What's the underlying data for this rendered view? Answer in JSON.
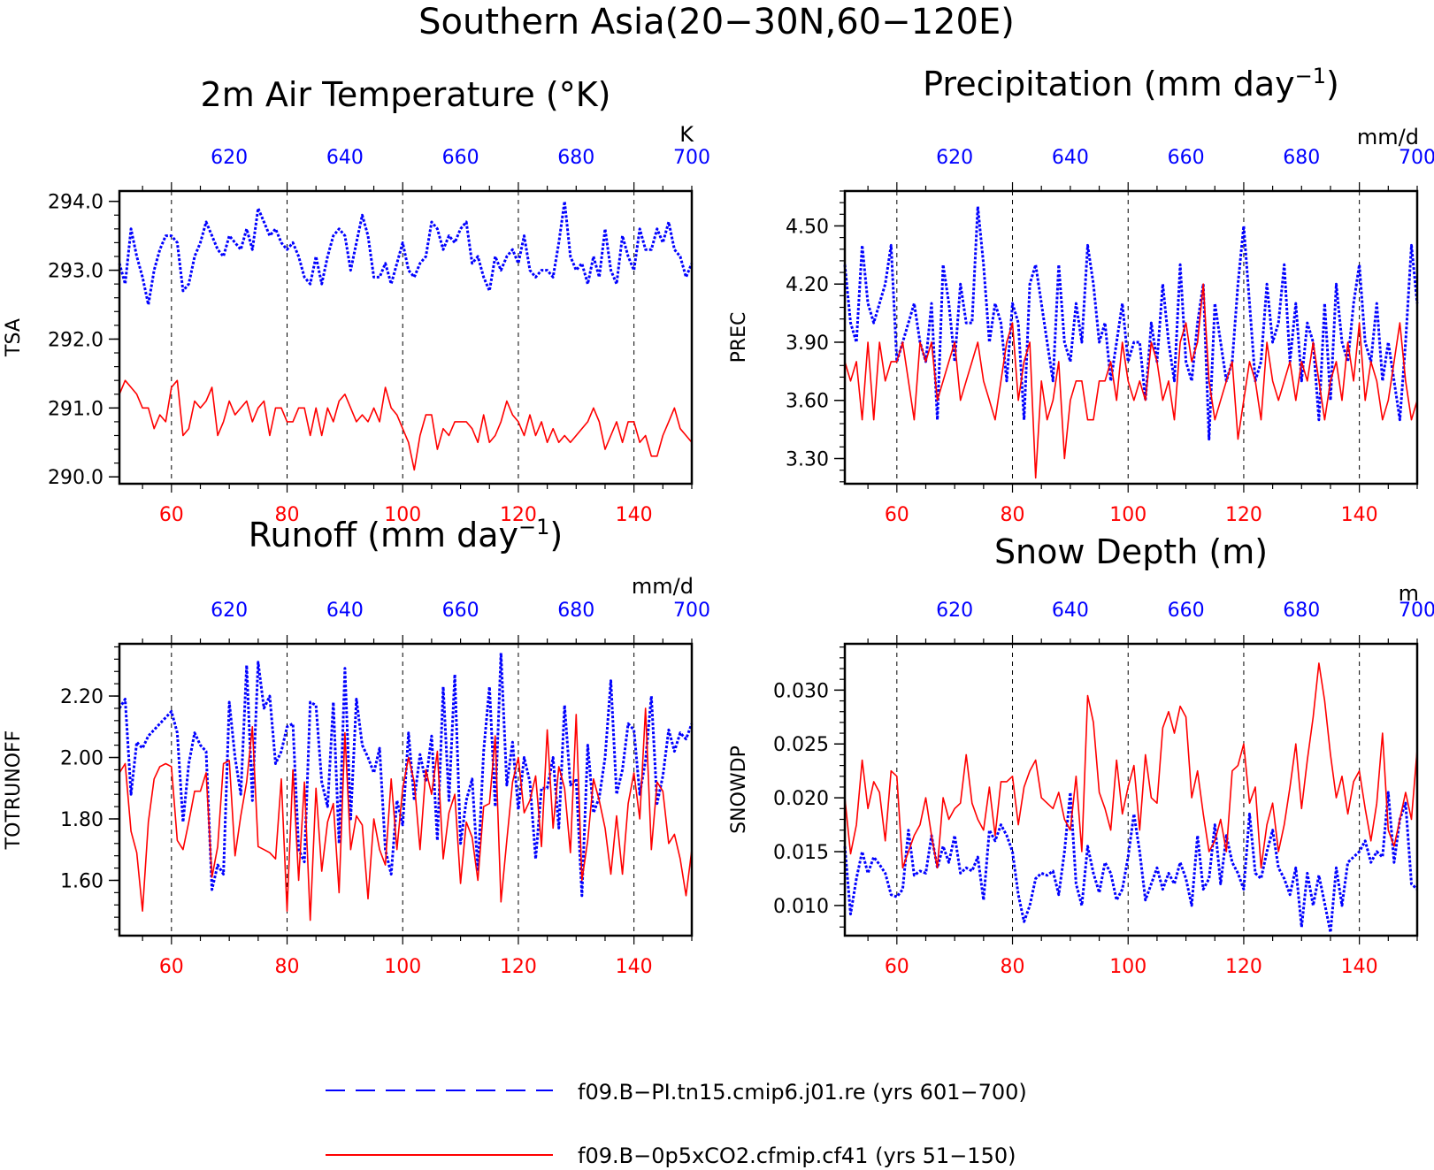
{
  "figure_title": "Southern Asia(20−30N,60−120E)",
  "colors": {
    "pi": "#0000ff",
    "co2": "#ff0000",
    "axis": "#000000"
  },
  "legend": {
    "pi": "f09.B−PI.tn15.cmip6.j01.re (yrs 601−700)",
    "co2": "f09.B−0p5xCO2.cfmip.cf41 (yrs 51−150)"
  },
  "chart_data": [
    {
      "type": "line",
      "title": "2m Air Temperature (°K)",
      "ylabel": "TSA",
      "units": "K",
      "xlim": [
        51,
        150
      ],
      "x_top_lim": [
        601,
        700
      ],
      "ylim": [
        289.9,
        294.15
      ],
      "yticks": [
        "290.0",
        "291.0",
        "292.0",
        "293.0",
        "294.0"
      ],
      "xticks_bottom": [
        "60",
        "80",
        "100",
        "120",
        "140"
      ],
      "xticks_top": [
        "620",
        "640",
        "660",
        "680",
        "700"
      ],
      "series": [
        {
          "key": "pi",
          "values": [
            293.1,
            292.8,
            293.6,
            293.2,
            292.9,
            292.5,
            293.0,
            293.3,
            293.5,
            293.5,
            293.4,
            292.7,
            292.8,
            293.2,
            293.4,
            293.7,
            293.5,
            293.3,
            293.2,
            293.5,
            293.4,
            293.3,
            293.6,
            293.3,
            293.9,
            293.7,
            293.5,
            293.6,
            293.4,
            293.3,
            293.4,
            293.2,
            292.9,
            292.8,
            293.2,
            292.8,
            293.2,
            293.5,
            293.6,
            293.5,
            293.0,
            293.4,
            293.8,
            293.5,
            292.9,
            292.9,
            293.1,
            292.8,
            293.1,
            293.4,
            293.0,
            292.9,
            293.1,
            293.2,
            293.7,
            293.6,
            293.3,
            293.5,
            293.4,
            293.6,
            293.7,
            293.1,
            293.2,
            292.9,
            292.7,
            293.2,
            293.0,
            293.2,
            293.3,
            293.1,
            293.5,
            293.0,
            292.9,
            293.0,
            293.0,
            292.9,
            293.4,
            294.0,
            293.2,
            293.0,
            293.1,
            292.8,
            293.2,
            292.9,
            293.6,
            293.0,
            292.8,
            293.5,
            293.2,
            293.0,
            293.6,
            293.3,
            293.3,
            293.6,
            293.4,
            293.7,
            293.3,
            293.2,
            292.9,
            293.1
          ]
        },
        {
          "key": "co2",
          "values": [
            291.2,
            291.4,
            291.3,
            291.2,
            291.0,
            291.0,
            290.7,
            290.9,
            290.8,
            291.3,
            291.4,
            290.6,
            290.7,
            291.1,
            291.0,
            291.1,
            291.3,
            290.6,
            290.8,
            291.1,
            290.9,
            291.0,
            291.1,
            290.8,
            291.0,
            291.1,
            290.6,
            291.0,
            291.0,
            290.8,
            290.8,
            291.0,
            291.0,
            290.6,
            291.0,
            290.6,
            291.0,
            290.8,
            291.1,
            291.2,
            291.0,
            290.8,
            290.9,
            290.8,
            291.0,
            290.8,
            291.3,
            291.0,
            290.9,
            290.7,
            290.5,
            290.1,
            290.6,
            290.9,
            290.9,
            290.4,
            290.7,
            290.6,
            290.8,
            290.8,
            290.8,
            290.7,
            290.5,
            290.9,
            290.5,
            290.6,
            290.8,
            291.1,
            290.9,
            290.8,
            290.6,
            290.9,
            290.6,
            290.8,
            290.5,
            290.7,
            290.5,
            290.6,
            290.5,
            290.6,
            290.7,
            290.8,
            291.0,
            290.8,
            290.4,
            290.6,
            290.8,
            290.5,
            290.8,
            290.8,
            290.5,
            290.6,
            290.3,
            290.3,
            290.6,
            290.8,
            291.0,
            290.7,
            290.6,
            290.5
          ]
        }
      ]
    },
    {
      "type": "line",
      "title": "Precipitation (mm day",
      "title_sup": "−1",
      "title_end": ")",
      "ylabel": "PREC",
      "units": "mm/d",
      "xlim": [
        51,
        150
      ],
      "x_top_lim": [
        601,
        700
      ],
      "ylim": [
        3.17,
        4.68
      ],
      "yticks": [
        "3.30",
        "3.60",
        "3.90",
        "4.20",
        "4.50"
      ],
      "xticks_bottom": [
        "60",
        "80",
        "100",
        "120",
        "140"
      ],
      "xticks_top": [
        "620",
        "640",
        "660",
        "680",
        "700"
      ],
      "series": [
        {
          "key": "pi",
          "values": [
            4.3,
            4.0,
            3.9,
            4.4,
            4.1,
            4.0,
            4.1,
            4.2,
            4.4,
            3.8,
            3.9,
            4.0,
            4.1,
            3.9,
            3.8,
            4.1,
            3.5,
            4.3,
            4.1,
            3.8,
            4.2,
            4.0,
            4.0,
            4.6,
            4.3,
            3.9,
            4.1,
            4.0,
            3.7,
            4.1,
            4.0,
            3.5,
            4.2,
            4.3,
            4.1,
            3.9,
            3.7,
            4.3,
            3.9,
            3.8,
            4.1,
            3.9,
            4.4,
            4.2,
            3.9,
            4.0,
            3.7,
            3.9,
            4.1,
            3.8,
            3.9,
            3.9,
            3.6,
            4.0,
            3.8,
            4.2,
            3.9,
            3.7,
            4.3,
            3.8,
            3.7,
            4.0,
            4.2,
            3.4,
            4.1,
            3.9,
            3.7,
            3.8,
            4.2,
            4.5,
            4.1,
            3.7,
            3.8,
            4.2,
            3.9,
            4.0,
            4.3,
            3.8,
            4.1,
            3.7,
            4.0,
            3.9,
            3.5,
            4.1,
            3.6,
            4.2,
            3.9,
            3.8,
            4.1,
            4.3,
            3.9,
            3.8,
            4.1,
            3.7,
            3.9,
            3.7,
            3.5,
            3.9,
            4.4,
            4.1
          ]
        },
        {
          "key": "co2",
          "values": [
            3.8,
            3.7,
            3.8,
            3.5,
            3.9,
            3.5,
            3.9,
            3.7,
            3.8,
            3.8,
            3.9,
            3.7,
            3.5,
            3.9,
            3.8,
            3.9,
            3.6,
            3.7,
            3.8,
            3.9,
            3.6,
            3.7,
            3.8,
            3.9,
            3.7,
            3.6,
            3.5,
            3.7,
            3.9,
            4.0,
            3.6,
            3.8,
            3.9,
            3.2,
            3.7,
            3.5,
            3.6,
            3.8,
            3.3,
            3.6,
            3.7,
            3.7,
            3.5,
            3.5,
            3.7,
            3.7,
            3.8,
            3.6,
            3.9,
            3.7,
            3.6,
            3.7,
            3.6,
            3.9,
            3.8,
            3.6,
            3.7,
            3.5,
            3.9,
            4.0,
            3.8,
            3.9,
            4.2,
            3.7,
            3.5,
            3.6,
            3.7,
            3.8,
            3.4,
            3.6,
            3.8,
            3.7,
            3.5,
            3.9,
            3.7,
            3.6,
            3.7,
            3.8,
            3.6,
            3.8,
            3.7,
            3.9,
            3.7,
            3.5,
            3.7,
            3.8,
            3.6,
            3.9,
            3.7,
            4.0,
            3.6,
            3.8,
            3.7,
            3.5,
            3.6,
            3.8,
            4.0,
            3.7,
            3.5,
            3.6
          ]
        }
      ]
    },
    {
      "type": "line",
      "title": "Runoff (mm day",
      "title_sup": "−1",
      "title_end": ")",
      "ylabel": "TOTRUNOFF",
      "units": "mm/d",
      "xlim": [
        51,
        150
      ],
      "x_top_lim": [
        601,
        700
      ],
      "ylim": [
        1.42,
        2.37
      ],
      "yticks": [
        "1.60",
        "1.80",
        "2.00",
        "2.20"
      ],
      "xticks_bottom": [
        "60",
        "80",
        "100",
        "120",
        "140"
      ],
      "xticks_top": [
        "620",
        "640",
        "660",
        "680",
        "700"
      ],
      "series": [
        {
          "key": "pi",
          "values": [
            2.16,
            2.19,
            1.88,
            2.05,
            2.03,
            2.07,
            2.09,
            2.11,
            2.13,
            2.15,
            2.08,
            1.79,
            1.98,
            2.08,
            2.04,
            2.02,
            1.57,
            1.65,
            1.62,
            2.18,
            2.0,
            1.88,
            2.3,
            1.86,
            2.31,
            2.16,
            2.2,
            1.98,
            2.02,
            2.1,
            2.11,
            1.7,
            1.66,
            2.18,
            2.17,
            1.92,
            1.84,
            2.18,
            1.72,
            2.29,
            1.8,
            2.19,
            2.04,
            2.0,
            1.95,
            2.03,
            1.7,
            1.62,
            1.86,
            1.78,
            2.08,
            1.86,
            2.01,
            1.92,
            2.07,
            1.73,
            2.23,
            1.86,
            2.27,
            1.72,
            1.86,
            1.93,
            1.63,
            2.02,
            2.23,
            1.84,
            2.34,
            1.91,
            2.05,
            1.83,
            2.0,
            1.92,
            1.67,
            1.9,
            1.9,
            2.0,
            1.77,
            2.17,
            1.91,
            1.93,
            1.55,
            2.04,
            1.82,
            1.87,
            2.0,
            2.25,
            1.88,
            1.96,
            2.11,
            2.09,
            1.88,
            1.99,
            2.2,
            1.85,
            1.94,
            2.09,
            2.02,
            2.08,
            2.06,
            2.11
          ]
        },
        {
          "key": "co2",
          "values": [
            1.95,
            1.98,
            1.76,
            1.69,
            1.5,
            1.79,
            1.93,
            1.97,
            1.98,
            1.97,
            1.73,
            1.7,
            1.79,
            1.89,
            1.89,
            1.95,
            1.61,
            1.71,
            1.98,
            1.99,
            1.68,
            1.81,
            1.92,
            2.1,
            1.71,
            1.7,
            1.69,
            1.67,
            1.93,
            1.5,
            1.96,
            1.6,
            1.92,
            1.47,
            1.9,
            1.63,
            1.79,
            1.85,
            1.56,
            2.08,
            1.7,
            1.81,
            1.78,
            1.54,
            1.8,
            1.7,
            1.65,
            1.93,
            1.7,
            1.9,
            2.0,
            1.92,
            1.7,
            1.96,
            1.88,
            2.02,
            1.67,
            1.82,
            1.88,
            1.59,
            1.79,
            1.74,
            1.6,
            1.84,
            1.85,
            2.07,
            1.53,
            1.73,
            1.92,
            2.0,
            1.82,
            1.86,
            1.94,
            1.71,
            2.09,
            1.77,
            1.97,
            1.9,
            1.69,
            2.14,
            1.6,
            1.73,
            1.93,
            1.86,
            1.77,
            1.62,
            1.81,
            1.62,
            1.85,
            1.95,
            1.8,
            2.16,
            1.7,
            1.92,
            1.89,
            1.72,
            1.75,
            1.67,
            1.55,
            1.7
          ]
        }
      ]
    },
    {
      "type": "line",
      "title": "Snow Depth (m)",
      "ylabel": "SNOWDP",
      "units": "m",
      "xlim": [
        51,
        150
      ],
      "x_top_lim": [
        601,
        700
      ],
      "ylim": [
        0.0072,
        0.0343
      ],
      "yticks": [
        "0.010",
        "0.015",
        "0.020",
        "0.025",
        "0.030"
      ],
      "xticks_bottom": [
        "60",
        "80",
        "100",
        "120",
        "140"
      ],
      "xticks_top": [
        "620",
        "640",
        "660",
        "680",
        "700"
      ],
      "series": [
        {
          "key": "pi",
          "values": [
            0.0155,
            0.0092,
            0.0125,
            0.015,
            0.013,
            0.0145,
            0.0138,
            0.013,
            0.011,
            0.0108,
            0.0115,
            0.017,
            0.0128,
            0.0132,
            0.013,
            0.0165,
            0.0135,
            0.0155,
            0.014,
            0.0165,
            0.013,
            0.0135,
            0.0132,
            0.0145,
            0.0105,
            0.017,
            0.016,
            0.0175,
            0.0165,
            0.015,
            0.011,
            0.0085,
            0.01,
            0.0125,
            0.013,
            0.0128,
            0.0132,
            0.011,
            0.015,
            0.0205,
            0.012,
            0.01,
            0.0155,
            0.013,
            0.0112,
            0.014,
            0.013,
            0.0105,
            0.0115,
            0.0145,
            0.0185,
            0.015,
            0.0105,
            0.012,
            0.0135,
            0.0115,
            0.013,
            0.012,
            0.014,
            0.0125,
            0.01,
            0.0165,
            0.0115,
            0.0125,
            0.0175,
            0.012,
            0.0165,
            0.014,
            0.013,
            0.0115,
            0.0185,
            0.013,
            0.0125,
            0.015,
            0.017,
            0.0135,
            0.0125,
            0.011,
            0.0135,
            0.008,
            0.013,
            0.01,
            0.0128,
            0.0102,
            0.0075,
            0.0135,
            0.01,
            0.014,
            0.0145,
            0.015,
            0.016,
            0.014,
            0.015,
            0.0145,
            0.0205,
            0.014,
            0.018,
            0.0195,
            0.012,
            0.0115
          ]
        },
        {
          "key": "co2",
          "values": [
            0.02,
            0.0148,
            0.0175,
            0.0235,
            0.019,
            0.0215,
            0.0205,
            0.016,
            0.0225,
            0.022,
            0.0135,
            0.015,
            0.0165,
            0.0175,
            0.02,
            0.0165,
            0.0135,
            0.02,
            0.018,
            0.019,
            0.0195,
            0.024,
            0.0195,
            0.018,
            0.017,
            0.021,
            0.0165,
            0.0215,
            0.0215,
            0.022,
            0.0175,
            0.021,
            0.0225,
            0.0235,
            0.02,
            0.0195,
            0.019,
            0.0205,
            0.018,
            0.017,
            0.022,
            0.015,
            0.0295,
            0.027,
            0.0205,
            0.019,
            0.017,
            0.0235,
            0.0185,
            0.021,
            0.023,
            0.017,
            0.024,
            0.02,
            0.0195,
            0.0265,
            0.028,
            0.026,
            0.0285,
            0.0275,
            0.02,
            0.0225,
            0.0185,
            0.015,
            0.016,
            0.018,
            0.015,
            0.0225,
            0.023,
            0.025,
            0.0195,
            0.021,
            0.0135,
            0.0175,
            0.0195,
            0.015,
            0.0175,
            0.021,
            0.025,
            0.019,
            0.0235,
            0.0275,
            0.0325,
            0.029,
            0.024,
            0.02,
            0.022,
            0.0185,
            0.0215,
            0.0225,
            0.019,
            0.016,
            0.0195,
            0.026,
            0.017,
            0.0155,
            0.018,
            0.0205,
            0.018,
            0.0245
          ]
        }
      ]
    }
  ]
}
